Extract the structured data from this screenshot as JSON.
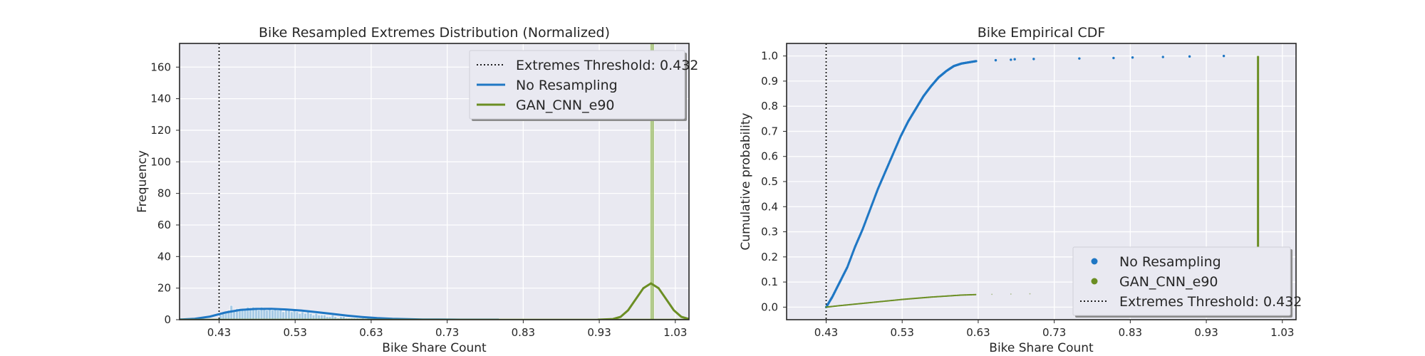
{
  "chart_data": [
    {
      "type": "histogram-kde",
      "title": "Bike Resampled Extremes Distribution (Normalized)",
      "xlabel": "Bike Share Count",
      "ylabel": "Frequency",
      "xlim": [
        0.38,
        1.05
      ],
      "ylim": [
        0,
        175
      ],
      "x_ticks": [
        "0.43",
        "0.53",
        "0.63",
        "0.73",
        "0.83",
        "0.93",
        "1.03"
      ],
      "x_tick_values": [
        0.432,
        0.532,
        0.632,
        0.732,
        0.832,
        0.932,
        1.032
      ],
      "y_ticks": [
        "0",
        "20",
        "40",
        "60",
        "80",
        "100",
        "120",
        "140",
        "160"
      ],
      "y_tick_values": [
        0,
        20,
        40,
        60,
        80,
        100,
        120,
        140,
        160
      ],
      "grid": true,
      "legend_position": "top-right",
      "threshold": {
        "label": "Extremes Threshold: 0.432",
        "value": 0.432,
        "color": "#000000"
      },
      "series": [
        {
          "name": "No Resampling",
          "color": "#1f77c4",
          "hist_color": "#8fbfe0",
          "histogram": {
            "bin_start": 0.432,
            "bin_width": 0.0036,
            "counts": [
              3,
              4,
              5,
              6,
              9,
              6,
              7,
              7,
              6,
              7,
              8,
              7,
              8,
              7,
              6,
              8,
              7,
              6,
              7,
              6,
              7,
              6,
              7,
              5,
              6,
              6,
              5,
              6,
              5,
              4,
              5,
              4,
              5,
              4,
              3,
              4,
              3,
              3,
              3,
              2,
              2,
              3,
              2,
              1,
              2,
              2,
              1,
              1,
              1,
              1,
              1,
              0,
              1,
              0,
              1,
              0,
              0,
              1,
              0,
              1
            ]
          },
          "kde": {
            "x": [
              0.38,
              0.4,
              0.42,
              0.44,
              0.46,
              0.48,
              0.5,
              0.52,
              0.54,
              0.56,
              0.58,
              0.6,
              0.62,
              0.64,
              0.66,
              0.68,
              0.7,
              0.72,
              0.75,
              0.8
            ],
            "y": [
              0.1,
              0.6,
              2.0,
              4.5,
              6.2,
              6.8,
              6.9,
              6.5,
              5.8,
              4.8,
              3.7,
              2.6,
              1.7,
              1.0,
              0.55,
              0.3,
              0.15,
              0.07,
              0.02,
              0.0
            ]
          }
        },
        {
          "name": "GAN_CNN_e90",
          "color": "#6b8e23",
          "hist_color": "#9fbf6a",
          "histogram": {
            "bin_start": 0.9988,
            "bin_width": 0.0056,
            "counts": [
              175
            ]
          },
          "kde": {
            "x": [
              0.93,
              0.95,
              0.96,
              0.97,
              0.98,
              0.99,
              1.0,
              1.01,
              1.02,
              1.03,
              1.04,
              1.05
            ],
            "y": [
              0.0,
              0.4,
              1.8,
              6.0,
              13.0,
              20.0,
              23.0,
              20.0,
              13.0,
              6.0,
              1.8,
              0.4
            ]
          }
        }
      ],
      "legend_order": [
        "threshold",
        "No Resampling",
        "GAN_CNN_e90"
      ]
    },
    {
      "type": "scatter",
      "title": "Bike Empirical CDF",
      "xlabel": "Bike Share Count",
      "ylabel": "Cumulative probability",
      "xlim": [
        0.38,
        1.05
      ],
      "ylim": [
        -0.05,
        1.05
      ],
      "x_ticks": [
        "0.43",
        "0.53",
        "0.63",
        "0.73",
        "0.83",
        "0.93",
        "1.03"
      ],
      "x_tick_values": [
        0.432,
        0.532,
        0.632,
        0.732,
        0.832,
        0.932,
        1.032
      ],
      "y_ticks": [
        "0.0",
        "0.1",
        "0.2",
        "0.3",
        "0.4",
        "0.5",
        "0.6",
        "0.7",
        "0.8",
        "0.9",
        "1.0"
      ],
      "y_tick_values": [
        0,
        0.1,
        0.2,
        0.3,
        0.4,
        0.5,
        0.6,
        0.7,
        0.8,
        0.9,
        1.0
      ],
      "grid": true,
      "legend_position": "lower-right",
      "threshold": {
        "label": "Extremes Threshold: 0.432",
        "value": 0.432,
        "color": "#000000"
      },
      "series": [
        {
          "name": "No Resampling",
          "color": "#1f77c4",
          "curve": {
            "x": [
              0.432,
              0.44,
              0.45,
              0.46,
              0.47,
              0.48,
              0.49,
              0.5,
              0.51,
              0.52,
              0.53,
              0.54,
              0.55,
              0.56,
              0.57,
              0.58,
              0.59,
              0.6,
              0.61,
              0.62,
              0.63
            ],
            "y": [
              0.0,
              0.04,
              0.1,
              0.16,
              0.24,
              0.31,
              0.39,
              0.47,
              0.54,
              0.61,
              0.68,
              0.74,
              0.79,
              0.84,
              0.88,
              0.915,
              0.94,
              0.96,
              0.97,
              0.975,
              0.98
            ]
          },
          "outliers": {
            "x": [
              0.655,
              0.675,
              0.68,
              0.705,
              0.765,
              0.81,
              0.835,
              0.875,
              0.91,
              0.955
            ],
            "y": [
              0.983,
              0.985,
              0.987,
              0.988,
              0.99,
              0.992,
              0.994,
              0.996,
              0.998,
              1.0
            ]
          }
        },
        {
          "name": "GAN_CNN_e90",
          "color": "#6b8e23",
          "curve": {
            "x": [
              0.432,
              0.45,
              0.47,
              0.49,
              0.51,
              0.53,
              0.55,
              0.57,
              0.59,
              0.61,
              0.63
            ],
            "y": [
              0.0,
              0.006,
              0.012,
              0.018,
              0.024,
              0.03,
              0.035,
              0.04,
              0.044,
              0.048,
              0.05
            ]
          },
          "outliers": {
            "x": [
              0.65,
              0.675,
              0.7
            ],
            "y": [
              0.051,
              0.052,
              0.053
            ]
          },
          "vertical_jump": {
            "x": 1.0,
            "y_from": 0.05,
            "y_to": 1.0
          }
        }
      ],
      "legend_order": [
        "No Resampling",
        "GAN_CNN_e90",
        "threshold"
      ]
    }
  ]
}
